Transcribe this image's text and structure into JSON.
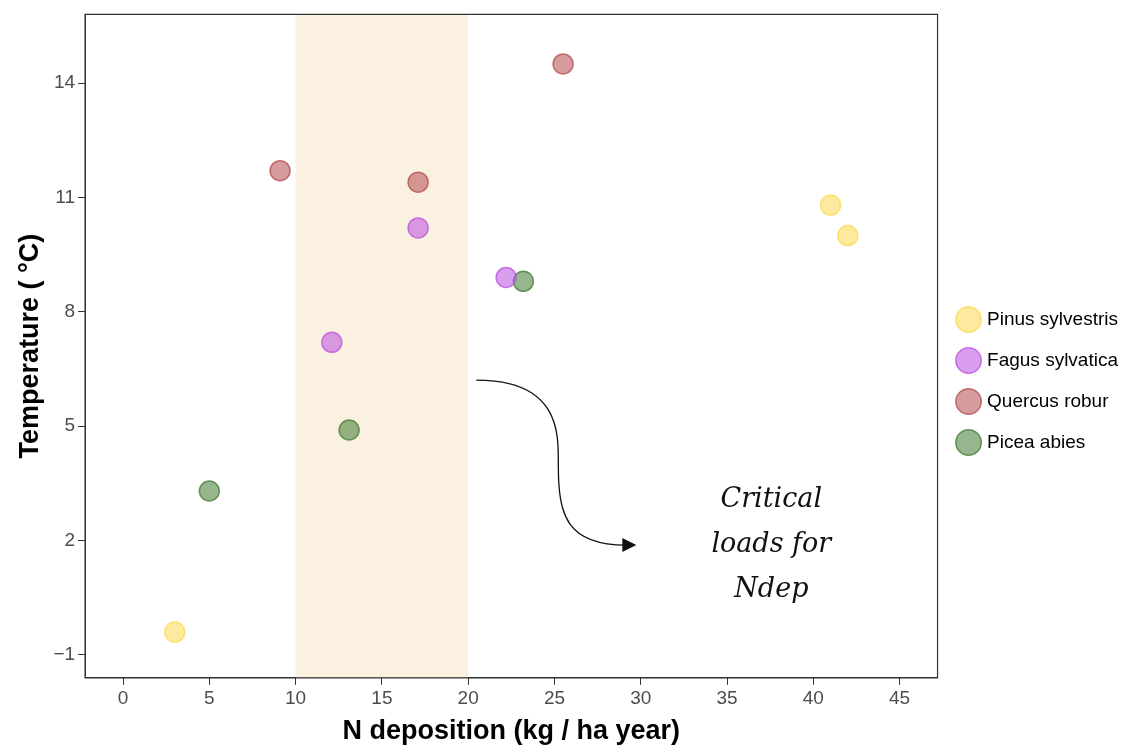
{
  "chart_data": {
    "type": "scatter",
    "xlabel": "N deposition (kg / ha year)",
    "ylabel": "Temperature ( °C)",
    "xlim": [
      -2.2,
      47.2
    ],
    "xticks": [
      0,
      5,
      10,
      15,
      20,
      25,
      30,
      35,
      40,
      45
    ],
    "ylim": [
      -1.6,
      15.8
    ],
    "yticks": [
      -1,
      2,
      5,
      8,
      11,
      14
    ],
    "grid": false,
    "legend": "right",
    "marker": "circle",
    "series": [
      {
        "name": "Pinus sylvestris",
        "color": "#fcd94e",
        "x": [
          3.0,
          41.0,
          42.0
        ],
        "values": [
          -0.4,
          10.8,
          10.0
        ]
      },
      {
        "name": "Fagus sylvatica",
        "color": "#b94fe0",
        "x": [
          17.1,
          22.2,
          12.1
        ],
        "values": [
          10.2,
          8.9,
          7.2
        ]
      },
      {
        "name": "Quercus robur",
        "color": "#b24a4f",
        "x": [
          9.1,
          17.1,
          25.5
        ],
        "values": [
          11.7,
          11.4,
          14.5
        ]
      },
      {
        "name": "Picea abies",
        "color": "#3f7a2f",
        "x": [
          23.2,
          13.1,
          5.0
        ],
        "values": [
          8.8,
          4.9,
          3.3
        ]
      }
    ],
    "bands": [
      {
        "axis": "x",
        "from": 10,
        "to": 20,
        "color": "#fbf1e1"
      }
    ],
    "annotations": [
      "Critical loads for Ndep"
    ]
  }
}
